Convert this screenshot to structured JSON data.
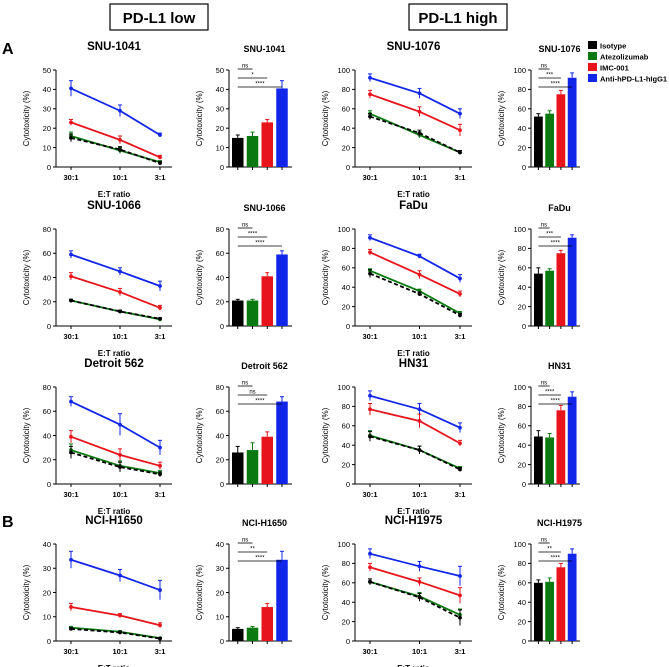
{
  "headers": {
    "low": "PD-L1 low",
    "high": "PD-L1 high"
  },
  "section_labels": {
    "a": "A",
    "b": "B"
  },
  "legend": [
    {
      "name": "Isotype",
      "color": "#000000"
    },
    {
      "name": "Atezolizumab",
      "color": "#0a7a10"
    },
    {
      "name": "IMC-001",
      "color": "#e8141b"
    },
    {
      "name": "Anti-hPD-L1-hIgG1",
      "color": "#1126e8"
    }
  ],
  "shared": {
    "ylabel": "Cytotoxicity (%)",
    "xlabel": "E:T ratio",
    "ratios": [
      "30:1",
      "10:1",
      "3:1"
    ]
  },
  "chart_data": [
    {
      "type": "line",
      "title": "SNU-1041",
      "ylim": [
        0,
        50
      ],
      "ticks": [
        0,
        10,
        20,
        30,
        40,
        50
      ],
      "series": [
        {
          "name": "Isotype",
          "values": [
            15,
            9,
            2
          ],
          "err": [
            2,
            1.5,
            0.8
          ]
        },
        {
          "name": "Atezolizumab",
          "values": [
            16,
            8.5,
            2.5
          ],
          "err": [
            2,
            1.5,
            0.8
          ]
        },
        {
          "name": "IMC-001",
          "values": [
            23,
            14,
            5
          ],
          "err": [
            1.5,
            2,
            1
          ]
        },
        {
          "name": "Anti-hPD-L1-hIgG1",
          "values": [
            40.5,
            29,
            16.5
          ],
          "err": [
            4,
            3,
            1
          ]
        }
      ]
    },
    {
      "type": "bar",
      "title": "SNU-1041",
      "ylim": [
        0,
        50
      ],
      "ticks": [
        0,
        10,
        20,
        30,
        40,
        50
      ],
      "values": [
        15,
        16,
        23,
        40.5
      ],
      "err": [
        1.5,
        2,
        1.5,
        4
      ],
      "sig": [
        "ns",
        "*",
        "****"
      ]
    },
    {
      "type": "line",
      "title": "SNU-1076",
      "ylim": [
        0,
        100
      ],
      "ticks": [
        0,
        20,
        40,
        60,
        80,
        100
      ],
      "series": [
        {
          "name": "Isotype",
          "values": [
            52,
            35,
            15
          ],
          "err": [
            3,
            3,
            2
          ]
        },
        {
          "name": "Atezolizumab",
          "values": [
            55,
            33,
            15
          ],
          "err": [
            3,
            3,
            2
          ]
        },
        {
          "name": "IMC-001",
          "values": [
            75,
            57,
            38
          ],
          "err": [
            4,
            5,
            6
          ]
        },
        {
          "name": "Anti-hPD-L1-hIgG1",
          "values": [
            92,
            76,
            55
          ],
          "err": [
            4,
            5,
            5
          ]
        }
      ]
    },
    {
      "type": "bar",
      "title": "SNU-1076",
      "ylim": [
        0,
        100
      ],
      "ticks": [
        0,
        20,
        40,
        60,
        80,
        100
      ],
      "values": [
        52,
        55,
        75,
        92
      ],
      "err": [
        3,
        3,
        4,
        5
      ],
      "sig": [
        "ns",
        "***",
        "****"
      ]
    },
    {
      "type": "line",
      "title": "SNU-1066",
      "ylim": [
        0,
        80
      ],
      "ticks": [
        0,
        20,
        40,
        60,
        80
      ],
      "series": [
        {
          "name": "Isotype",
          "values": [
            21,
            12,
            6
          ],
          "err": [
            1,
            1,
            0.8
          ]
        },
        {
          "name": "Atezolizumab",
          "values": [
            21,
            12,
            5.5
          ],
          "err": [
            1,
            1,
            0.8
          ]
        },
        {
          "name": "IMC-001",
          "values": [
            41,
            28,
            15
          ],
          "err": [
            3,
            3,
            2
          ]
        },
        {
          "name": "Anti-hPD-L1-hIgG1",
          "values": [
            59,
            45,
            33
          ],
          "err": [
            3,
            3,
            4
          ]
        }
      ]
    },
    {
      "type": "bar",
      "title": "SNU-1066",
      "ylim": [
        0,
        80
      ],
      "ticks": [
        0,
        20,
        40,
        60,
        80
      ],
      "values": [
        21,
        21,
        41,
        59
      ],
      "err": [
        1,
        1,
        3,
        3
      ],
      "sig": [
        "ns",
        "****",
        "****"
      ]
    },
    {
      "type": "line",
      "title": "FaDu",
      "ylim": [
        0,
        100
      ],
      "ticks": [
        0,
        20,
        40,
        60,
        80,
        100
      ],
      "series": [
        {
          "name": "Isotype",
          "values": [
            54,
            33,
            11
          ],
          "err": [
            4,
            2,
            2
          ]
        },
        {
          "name": "Atezolizumab",
          "values": [
            57,
            36,
            13
          ],
          "err": [
            2,
            2,
            2
          ]
        },
        {
          "name": "IMC-001",
          "values": [
            76,
            53,
            33
          ],
          "err": [
            3,
            4,
            3
          ]
        },
        {
          "name": "Anti-hPD-L1-hIgG1",
          "values": [
            91,
            72,
            49
          ],
          "err": [
            3,
            2,
            4
          ]
        }
      ]
    },
    {
      "type": "bar",
      "title": "FaDu",
      "ylim": [
        0,
        100
      ],
      "ticks": [
        0,
        20,
        40,
        60,
        80,
        100
      ],
      "values": [
        54,
        57,
        75,
        91
      ],
      "err": [
        6,
        2,
        3,
        3
      ],
      "sig": [
        "ns",
        "***",
        "****"
      ]
    },
    {
      "type": "line",
      "title": "Detroit 562",
      "ylim": [
        0,
        80
      ],
      "ticks": [
        0,
        20,
        40,
        60,
        80
      ],
      "series": [
        {
          "name": "Isotype",
          "values": [
            26,
            14,
            8
          ],
          "err": [
            5,
            4,
            2
          ]
        },
        {
          "name": "Atezolizumab",
          "values": [
            28,
            15,
            9
          ],
          "err": [
            5,
            4,
            2
          ]
        },
        {
          "name": "IMC-001",
          "values": [
            39,
            24,
            15
          ],
          "err": [
            5,
            5,
            3
          ]
        },
        {
          "name": "Anti-hPD-L1-hIgG1",
          "values": [
            68,
            49,
            30
          ],
          "err": [
            4,
            9,
            6
          ]
        }
      ]
    },
    {
      "type": "bar",
      "title": "Detroit 562",
      "ylim": [
        0,
        80
      ],
      "ticks": [
        0,
        20,
        40,
        60,
        80
      ],
      "values": [
        26,
        28,
        39,
        68
      ],
      "err": [
        5,
        6,
        4,
        4
      ],
      "sig": [
        "ns",
        "ns",
        "****"
      ]
    },
    {
      "type": "line",
      "title": "HN31",
      "ylim": [
        0,
        100
      ],
      "ticks": [
        0,
        20,
        40,
        60,
        80,
        100
      ],
      "series": [
        {
          "name": "Isotype",
          "values": [
            49,
            35,
            15
          ],
          "err": [
            5,
            4,
            2
          ]
        },
        {
          "name": "Atezolizumab",
          "values": [
            50,
            35,
            16
          ],
          "err": [
            5,
            4,
            2
          ]
        },
        {
          "name": "IMC-001",
          "values": [
            77,
            65,
            42
          ],
          "err": [
            6,
            7,
            3
          ]
        },
        {
          "name": "Anti-hPD-L1-hIgG1",
          "values": [
            91,
            77,
            58
          ],
          "err": [
            5,
            6,
            5
          ]
        }
      ]
    },
    {
      "type": "bar",
      "title": "HN31",
      "ylim": [
        0,
        100
      ],
      "ticks": [
        0,
        20,
        40,
        60,
        80,
        100
      ],
      "values": [
        49,
        48,
        76,
        90
      ],
      "err": [
        6,
        4,
        5,
        5
      ],
      "sig": [
        "ns",
        "****",
        "****"
      ]
    },
    {
      "type": "line",
      "title": "NCI-H1650",
      "ylim": [
        0,
        40
      ],
      "ticks": [
        0,
        10,
        20,
        30,
        40
      ],
      "series": [
        {
          "name": "Isotype",
          "values": [
            5,
            3.5,
            1
          ],
          "err": [
            0.5,
            0.5,
            0.3
          ]
        },
        {
          "name": "Atezolizumab",
          "values": [
            5.5,
            3.8,
            1.2
          ],
          "err": [
            0.5,
            0.5,
            0.3
          ]
        },
        {
          "name": "IMC-001",
          "values": [
            14,
            10.5,
            6.5
          ],
          "err": [
            1.5,
            0.8,
            1
          ]
        },
        {
          "name": "Anti-hPD-L1-hIgG1",
          "values": [
            33.5,
            27,
            21
          ],
          "err": [
            3.5,
            2.5,
            4
          ]
        }
      ]
    },
    {
      "type": "bar",
      "title": "NCI-H1650",
      "ylim": [
        0,
        40
      ],
      "ticks": [
        0,
        10,
        20,
        30,
        40
      ],
      "values": [
        5,
        5.5,
        14,
        33.5
      ],
      "err": [
        0.5,
        0.5,
        1.5,
        3.5
      ],
      "sig": [
        "ns",
        "**",
        "****"
      ]
    },
    {
      "type": "line",
      "title": "NCI-H1975",
      "ylim": [
        0,
        100
      ],
      "ticks": [
        0,
        20,
        40,
        60,
        80,
        100
      ],
      "series": [
        {
          "name": "Isotype",
          "values": [
            61,
            45,
            24
          ],
          "err": [
            3,
            4,
            8
          ]
        },
        {
          "name": "Atezolizumab",
          "values": [
            61,
            46,
            27
          ],
          "err": [
            3,
            4,
            6
          ]
        },
        {
          "name": "IMC-001",
          "values": [
            76,
            61,
            47
          ],
          "err": [
            4,
            4,
            8
          ]
        },
        {
          "name": "Anti-hPD-L1-hIgG1",
          "values": [
            90,
            77,
            67
          ],
          "err": [
            5,
            5,
            10
          ]
        }
      ]
    },
    {
      "type": "bar",
      "title": "NCI-H1975",
      "ylim": [
        0,
        100
      ],
      "ticks": [
        0,
        20,
        40,
        60,
        80,
        100
      ],
      "values": [
        60,
        61,
        76,
        90
      ],
      "err": [
        3,
        4,
        4,
        5
      ],
      "sig": [
        "ns",
        "**",
        "****"
      ]
    }
  ]
}
